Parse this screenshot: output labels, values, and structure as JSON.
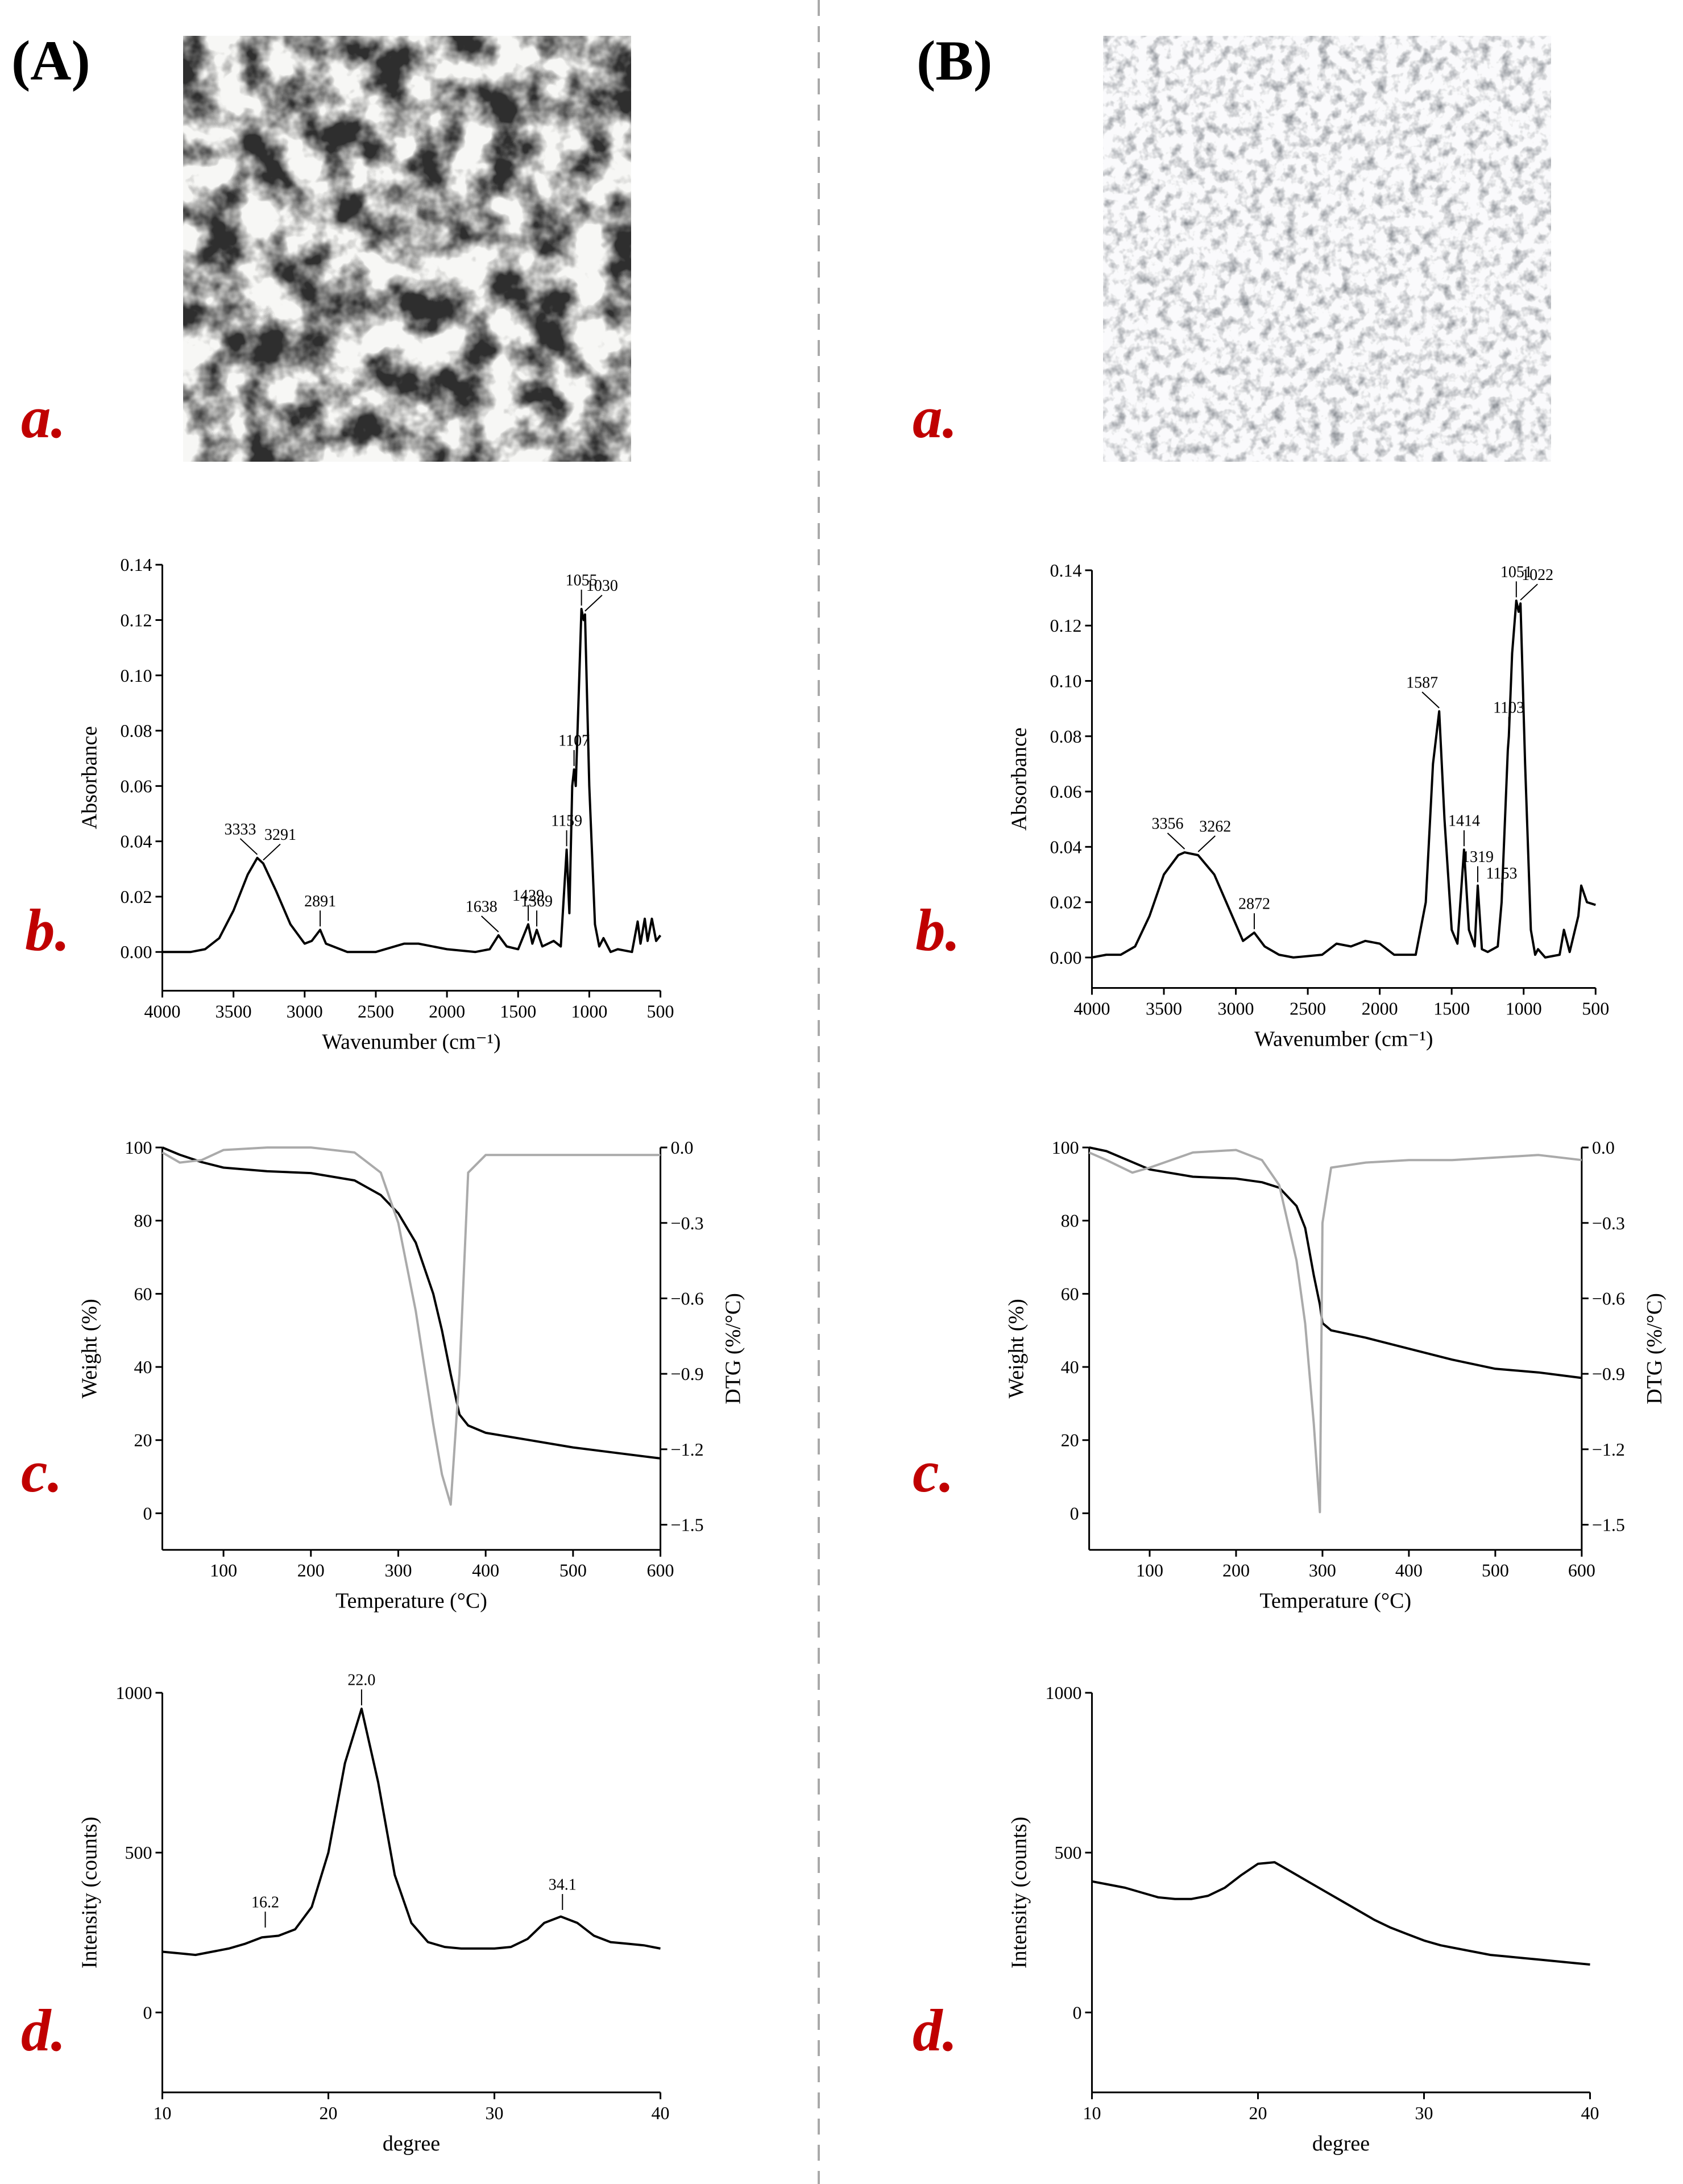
{
  "labels": {
    "A": "(A)",
    "B": "(B)",
    "a": "a.",
    "b": "b.",
    "c": "c.",
    "d": "d."
  },
  "chart_data": [
    {
      "type": "line",
      "xlabel": "Wavenumber (cm⁻¹)",
      "ylabel": "Absorbance",
      "x": [
        4000,
        3800,
        3700,
        3600,
        3500,
        3400,
        3333,
        3291,
        3200,
        3100,
        3000,
        2950,
        2891,
        2850,
        2700,
        2500,
        2300,
        2200,
        2000,
        1800,
        1700,
        1638,
        1580,
        1500,
        1429,
        1400,
        1369,
        1330,
        1250,
        1200,
        1159,
        1140,
        1120,
        1107,
        1095,
        1070,
        1055,
        1040,
        1030,
        1000,
        960,
        930,
        900,
        850,
        800,
        700,
        660,
        640,
        610,
        590,
        560,
        530,
        500
      ],
      "series": [
        {
          "color": "#000000",
          "values": [
            0,
            0,
            0.001,
            0.005,
            0.015,
            0.028,
            0.034,
            0.032,
            0.022,
            0.01,
            0.003,
            0.004,
            0.008,
            0.003,
            0,
            0,
            0.003,
            0.003,
            0.001,
            0,
            0.001,
            0.006,
            0.002,
            0.001,
            0.01,
            0.003,
            0.008,
            0.002,
            0.004,
            0.002,
            0.037,
            0.014,
            0.06,
            0.066,
            0.06,
            0.1,
            0.124,
            0.12,
            0.122,
            0.06,
            0.01,
            0.002,
            0.005,
            0,
            0.001,
            0,
            0.011,
            0.003,
            0.012,
            0.004,
            0.012,
            0.004,
            0.006
          ]
        }
      ],
      "xlim": [
        4000,
        500
      ],
      "xticks": [
        4000,
        3500,
        3000,
        2500,
        2000,
        1500,
        1000,
        500
      ],
      "ylim": [
        -0.014,
        0.14
      ],
      "yticks": [
        {
          "value": 0,
          "label": "0.00"
        },
        0.02,
        0.04,
        0.06,
        0.08,
        {
          "value": 0.1,
          "label": "0.10"
        },
        0.12,
        0.14
      ],
      "annotations": [
        {
          "x": 3333,
          "y": 0.034
        },
        {
          "x": 3291,
          "y": 0.032
        },
        {
          "x": 2891,
          "y": 0.008
        },
        {
          "x": 1638,
          "y": 0.006
        },
        {
          "x": 1429,
          "y": 0.01
        },
        {
          "x": 1369,
          "y": 0.008
        },
        {
          "x": 1159,
          "y": 0.037
        },
        {
          "x": 1107,
          "y": 0.066
        },
        {
          "x": 1055,
          "y": 0.124
        },
        {
          "x": 1030,
          "y": 0.122
        }
      ]
    },
    {
      "type": "line",
      "xlabel": "Wavenumber (cm⁻¹)",
      "ylabel": "Absorbance",
      "x": [
        4000,
        3900,
        3800,
        3700,
        3600,
        3500,
        3400,
        3356,
        3262,
        3150,
        3050,
        2950,
        2872,
        2800,
        2700,
        2600,
        2400,
        2300,
        2200,
        2100,
        2000,
        1900,
        1750,
        1680,
        1630,
        1587,
        1550,
        1500,
        1460,
        1414,
        1380,
        1340,
        1319,
        1290,
        1250,
        1180,
        1153,
        1110,
        1103,
        1080,
        1051,
        1035,
        1022,
        990,
        950,
        920,
        900,
        850,
        750,
        720,
        680,
        620,
        600,
        560,
        500
      ],
      "series": [
        {
          "color": "#000000",
          "values": [
            0,
            0.001,
            0.001,
            0.004,
            0.015,
            0.03,
            0.037,
            0.038,
            0.037,
            0.03,
            0.018,
            0.006,
            0.009,
            0.004,
            0.001,
            0,
            0.001,
            0.005,
            0.004,
            0.006,
            0.005,
            0.001,
            0.001,
            0.02,
            0.07,
            0.089,
            0.05,
            0.01,
            0.005,
            0.039,
            0.01,
            0.004,
            0.026,
            0.003,
            0.002,
            0.004,
            0.02,
            0.075,
            0.08,
            0.11,
            0.129,
            0.125,
            0.128,
            0.07,
            0.01,
            0.001,
            0.003,
            0,
            0.001,
            0.01,
            0.002,
            0.015,
            0.026,
            0.02,
            0.019
          ]
        }
      ],
      "xlim": [
        4000,
        500
      ],
      "xticks": [
        4000,
        3500,
        3000,
        2500,
        2000,
        1500,
        1000,
        500
      ],
      "ylim": [
        -0.011,
        0.14
      ],
      "yticks": [
        {
          "value": 0,
          "label": "0.00"
        },
        0.02,
        0.04,
        0.06,
        0.08,
        {
          "value": 0.1,
          "label": "0.10"
        },
        0.12,
        0.14
      ],
      "annotations": [
        {
          "x": 3356,
          "y": 0.038
        },
        {
          "x": 3262,
          "y": 0.037
        },
        {
          "x": 2872,
          "y": 0.009
        },
        {
          "x": 1587,
          "y": 0.089
        },
        {
          "x": 1414,
          "y": 0.039
        },
        {
          "x": 1319,
          "y": 0.026
        },
        {
          "x": 1153,
          "y": 0.02
        },
        {
          "x": 1103,
          "y": 0.08
        },
        {
          "x": 1051,
          "y": 0.129
        },
        {
          "x": 1022,
          "y": 0.128
        }
      ]
    },
    {
      "type": "line",
      "xlabel": "Temperature (°C)",
      "ylabel": "Weight (%)",
      "y2label": "DTG (%/°C)",
      "x": [
        30,
        50,
        75,
        100,
        150,
        200,
        250,
        280,
        300,
        320,
        340,
        350,
        360,
        370,
        380,
        400,
        450,
        500,
        550,
        600
      ],
      "series": [
        {
          "color": "#000000",
          "values": [
            100,
            98,
            96,
            94.5,
            93.5,
            93,
            91,
            87,
            82,
            74,
            60,
            50,
            38,
            27,
            24,
            22,
            20,
            18,
            16.5,
            15
          ]
        },
        {
          "color": "#aaaaaa",
          "axis": "y2",
          "values": [
            -0.02,
            -0.06,
            -0.05,
            -0.01,
            0,
            0,
            -0.02,
            -0.1,
            -0.3,
            -0.65,
            -1.1,
            -1.3,
            -1.42,
            -0.9,
            -0.1,
            -0.03,
            -0.03,
            -0.03,
            -0.03,
            -0.03
          ]
        }
      ],
      "xlim": [
        30,
        600
      ],
      "xticks": [
        100,
        200,
        300,
        400,
        500,
        600
      ],
      "ylim": [
        -10,
        100
      ],
      "yticks": [
        0,
        20,
        40,
        60,
        80,
        100
      ],
      "y2lim": [
        -1.6,
        0
      ],
      "y2ticks": [
        {
          "value": 0,
          "label": "0.0"
        },
        {
          "value": -0.3,
          "label": "−0.3"
        },
        {
          "value": -0.6,
          "label": "−0.6"
        },
        {
          "value": -0.9,
          "label": "−0.9"
        },
        {
          "value": -1.2,
          "label": "−1.2"
        },
        {
          "value": -1.5,
          "label": "−1.5"
        }
      ]
    },
    {
      "type": "line",
      "xlabel": "Temperature (°C)",
      "ylabel": "Weight (%)",
      "y2label": "DTG (%/°C)",
      "x": [
        30,
        50,
        80,
        100,
        150,
        200,
        230,
        250,
        270,
        280,
        290,
        297,
        300,
        310,
        350,
        400,
        450,
        500,
        550,
        600
      ],
      "series": [
        {
          "color": "#000000",
          "values": [
            100,
            99,
            96,
            94,
            92,
            91.5,
            90.5,
            89,
            84,
            78,
            65,
            57,
            52,
            50,
            48,
            45,
            42,
            39.5,
            38.5,
            37
          ]
        },
        {
          "color": "#aaaaaa",
          "axis": "y2",
          "values": [
            -0.02,
            -0.05,
            -0.1,
            -0.08,
            -0.02,
            -0.01,
            -0.05,
            -0.15,
            -0.45,
            -0.7,
            -1.1,
            -1.45,
            -0.3,
            -0.08,
            -0.06,
            -0.05,
            -0.05,
            -0.04,
            -0.03,
            -0.05
          ]
        }
      ],
      "xlim": [
        30,
        600
      ],
      "xticks": [
        100,
        200,
        300,
        400,
        500,
        600
      ],
      "ylim": [
        -10,
        100
      ],
      "yticks": [
        0,
        20,
        40,
        60,
        80,
        100
      ],
      "y2lim": [
        -1.6,
        0
      ],
      "y2ticks": [
        {
          "value": 0,
          "label": "0.0"
        },
        {
          "value": -0.3,
          "label": "−0.3"
        },
        {
          "value": -0.6,
          "label": "−0.6"
        },
        {
          "value": -0.9,
          "label": "−0.9"
        },
        {
          "value": -1.2,
          "label": "−1.2"
        },
        {
          "value": -1.5,
          "label": "−1.5"
        }
      ]
    },
    {
      "type": "line",
      "xlabel": "degree",
      "ylabel": "Intensity (counts)",
      "x": [
        10,
        11,
        12,
        13,
        14,
        15,
        16,
        17,
        18,
        19,
        20,
        21,
        22,
        23,
        24,
        25,
        26,
        27,
        28,
        29,
        30,
        31,
        32,
        33,
        34,
        35,
        36,
        37,
        38,
        39,
        40
      ],
      "series": [
        {
          "color": "#000000",
          "values": [
            190,
            185,
            180,
            190,
            200,
            215,
            235,
            240,
            260,
            330,
            500,
            780,
            950,
            720,
            430,
            280,
            220,
            205,
            200,
            200,
            200,
            205,
            230,
            280,
            300,
            280,
            240,
            220,
            215,
            210,
            200
          ]
        }
      ],
      "xlim": [
        10,
        40
      ],
      "xticks": [
        10,
        20,
        30,
        40
      ],
      "ylim": [
        -250,
        1000
      ],
      "yticks": [
        0,
        500,
        1000
      ],
      "annotations": [
        {
          "x": 16.2,
          "y": 255
        },
        {
          "x": 22,
          "label": "22.0",
          "y": 950
        },
        {
          "x": 34.1,
          "y": 310
        }
      ]
    },
    {
      "type": "line",
      "xlabel": "degree",
      "ylabel": "Intensity (counts)",
      "x": [
        10,
        11,
        12,
        13,
        14,
        15,
        16,
        17,
        18,
        19,
        20,
        21,
        22,
        23,
        24,
        25,
        26,
        27,
        28,
        29,
        30,
        31,
        32,
        33,
        34,
        35,
        36,
        37,
        38,
        39,
        40
      ],
      "series": [
        {
          "color": "#000000",
          "values": [
            410,
            400,
            390,
            375,
            360,
            355,
            355,
            365,
            390,
            430,
            465,
            470,
            440,
            410,
            380,
            350,
            320,
            290,
            265,
            245,
            225,
            210,
            200,
            190,
            180,
            175,
            170,
            165,
            160,
            155,
            150
          ]
        }
      ],
      "xlim": [
        10,
        40
      ],
      "xticks": [
        10,
        20,
        30,
        40
      ],
      "ylim": [
        -250,
        1000
      ],
      "yticks": [
        0,
        500,
        1000
      ]
    }
  ]
}
